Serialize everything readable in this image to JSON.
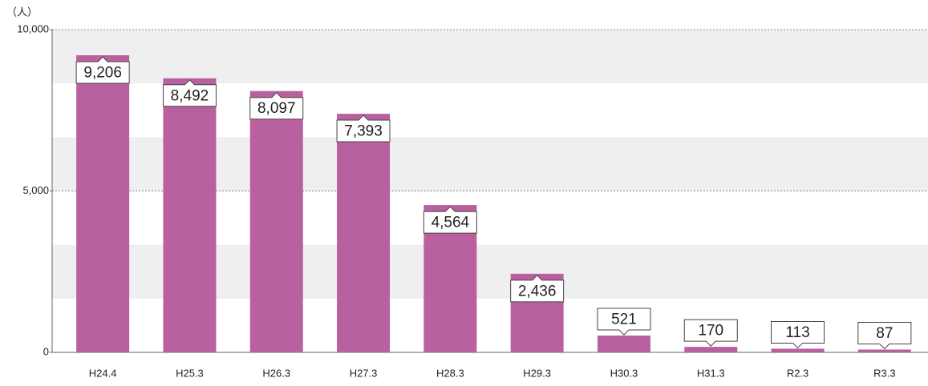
{
  "chart_data": {
    "type": "bar",
    "y_axis_label": "（人）",
    "categories": [
      "H24.4",
      "H25.3",
      "H26.3",
      "H27.3",
      "H28.3",
      "H29.3",
      "H30.3",
      "H31.3",
      "R2.3",
      "R3.3"
    ],
    "values": [
      9206,
      8492,
      8097,
      7393,
      4564,
      2436,
      521,
      170,
      113,
      87
    ],
    "value_labels": [
      "9,206",
      "8,492",
      "8,097",
      "7,393",
      "4,564",
      "2,436",
      "521",
      "170",
      "113",
      "87"
    ],
    "color": "#b9609f",
    "ylim": [
      0,
      10000
    ],
    "yticks": [
      0,
      {
        "value": 5000,
        "label": "5,000"
      },
      {
        "value": 10000,
        "label": "10,000"
      }
    ],
    "grid": true
  }
}
